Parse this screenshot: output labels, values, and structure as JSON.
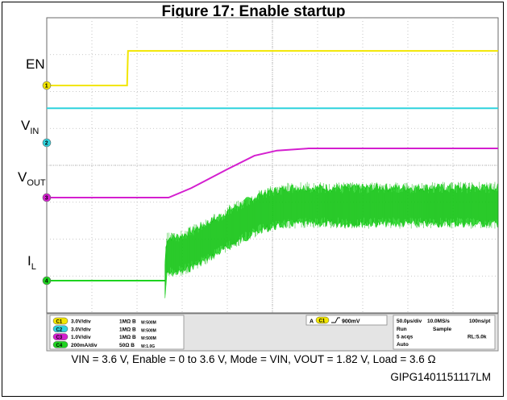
{
  "figure": {
    "title": "Figure 17: Enable startup",
    "caption": "VIN = 3.6 V, Enable = 0 to 3.6 V, Mode = VIN, VOUT = 1.82 V, Load = 3.6 Ω",
    "code": "GIPG1401151117LM"
  },
  "colors": {
    "screen_bg": "#ffffff",
    "grid": "#b8b8b8",
    "ch1": "#f2e600",
    "ch2": "#2ed3dd",
    "ch3": "#d41fcf",
    "ch4": "#1ed320",
    "panel_bg": "#c8c8c8"
  },
  "chart_data": {
    "type": "line",
    "x_unit": "µs",
    "x_divisions": 10,
    "y_divisions": 8,
    "time_per_div_us": 50,
    "series": [
      {
        "name": "EN",
        "channel": "1",
        "scale": "3.0V/div",
        "points": [
          [
            0,
            0
          ],
          [
            89,
            0
          ],
          [
            90,
            3.6
          ],
          [
            500,
            3.6
          ]
        ]
      },
      {
        "name": "VIN",
        "channel": "2",
        "scale": "3.0V/div",
        "points": [
          [
            0,
            3.6
          ],
          [
            500,
            3.6
          ]
        ]
      },
      {
        "name": "VOUT",
        "channel": "3",
        "scale": "1.0V/div",
        "points": [
          [
            0,
            0
          ],
          [
            135,
            0
          ],
          [
            160,
            0.35
          ],
          [
            200,
            1.05
          ],
          [
            230,
            1.55
          ],
          [
            255,
            1.74
          ],
          [
            290,
            1.82
          ],
          [
            500,
            1.82
          ]
        ]
      },
      {
        "name": "IL",
        "channel": "4",
        "scale": "200mA/div",
        "points": [
          [
            0,
            0
          ],
          [
            131,
            0
          ],
          [
            133,
            0.45
          ],
          [
            150,
            0.5
          ],
          [
            180,
            0.75
          ],
          [
            210,
            1.05
          ],
          [
            240,
            1.3
          ],
          [
            270,
            1.4
          ],
          [
            500,
            1.4
          ]
        ]
      }
    ]
  },
  "labels": {
    "en": "EN",
    "vin_main": "V",
    "vin_sub": "IN",
    "vout_main": "V",
    "vout_sub": "OUT",
    "il_main": "I",
    "il_sub": "L"
  },
  "markers": {
    "ch1": "1",
    "ch2": "2",
    "ch3": "3",
    "ch4": "4"
  },
  "readout": {
    "channels": [
      {
        "badge": "C1",
        "scale": "3.0V/div",
        "imp": "1MΩ B",
        "bw": "W:500M"
      },
      {
        "badge": "C2",
        "scale": "3.0V/div",
        "imp": "1MΩ B",
        "bw": "W:500M"
      },
      {
        "badge": "C3",
        "scale": "1.0V/div",
        "imp": "1MΩ B",
        "bw": "W:500M"
      },
      {
        "badge": "C4",
        "scale": "200mA/div",
        "imp": "50Ω B",
        "bw": "W:1.0G"
      }
    ],
    "trigger": {
      "prefix": "A",
      "badge": "C1",
      "level": "900mV"
    },
    "timebase": {
      "row1a": "50.0µs/div",
      "row1b": "10.0MS/s",
      "row1c": "100ns/pt",
      "row2a": "Run",
      "row2b": "Sample",
      "row3a": "5 acqs",
      "row3b": "RL:5.0k",
      "row4a": "Auto"
    }
  }
}
